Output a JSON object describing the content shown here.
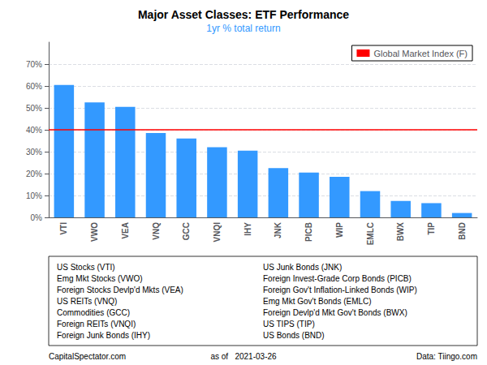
{
  "chart_data": {
    "type": "bar",
    "title": "Major Asset Classes: ETF Performance",
    "subtitle": "1yr % total return",
    "categories": [
      "VTI",
      "VWO",
      "VEA",
      "VNQ",
      "GCC",
      "VNQI",
      "IHY",
      "JNK",
      "PICB",
      "WIP",
      "EMLC",
      "BWX",
      "TIP",
      "BND"
    ],
    "values": [
      60.5,
      52.5,
      50.5,
      38.5,
      36.0,
      32.0,
      30.5,
      22.5,
      20.5,
      18.5,
      12.0,
      7.5,
      6.5,
      2.0
    ],
    "color": "#3399FF",
    "ylim": [
      0,
      80
    ],
    "yticks": [
      {
        "value": 0,
        "label": "0%"
      },
      {
        "value": 10,
        "label": "10%"
      },
      {
        "value": 20,
        "label": "20%"
      },
      {
        "value": 30,
        "label": "30%"
      },
      {
        "value": 40,
        "label": "40%"
      },
      {
        "value": 50,
        "label": "50%"
      },
      {
        "value": 60,
        "label": "60%"
      },
      {
        "value": 70,
        "label": "70%"
      }
    ],
    "grid": true,
    "reference_line": {
      "name": "Global Market Index (F)",
      "value": 40.0,
      "color": "#FF0000"
    },
    "legend": "upper right",
    "annotations": [
      "US Stocks (VTI)",
      "Emg Mkt Stocks (VWO)",
      "Foreign Stocks Devlp'd Mkts (VEA)",
      "US REITs (VNQ)",
      "Commodities (GCC)",
      "Foreign REITs (VNQI)",
      "Foreign Junk Bonds (IHY)",
      "US Junk Bonds (JNK)",
      "Foreign Invest-Grade Corp Bonds (PICB)",
      "Foreign Gov't Inflation-Linked Bonds (WIP)",
      "Emg Mkt Gov't Bonds (EMLC)",
      "Foreign Devlp'd Mkt Gov't Bonds (BWX)",
      "US TIPS (TIP)",
      "US Bonds (BND)"
    ],
    "footer": [
      "CapitalSpectator.com",
      "as of   2021-03-26",
      "Data: Tiingo.com"
    ]
  }
}
